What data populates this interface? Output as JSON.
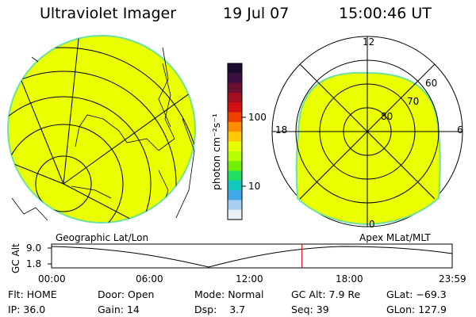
{
  "header": {
    "instrument": "Ultraviolet Imager",
    "date": "19 Jul 07",
    "time": "15:00:46 UT"
  },
  "colorbar": {
    "unit_label": "photon cm⁻²s⁻¹",
    "tick_labels": [
      "100",
      "10"
    ],
    "colors": [
      "#1a0a2e",
      "#3a1040",
      "#6a1030",
      "#a01020",
      "#d01010",
      "#ee4000",
      "#ff8c00",
      "#ffc800",
      "#e8ff00",
      "#b8ff00",
      "#70f000",
      "#20e060",
      "#10c8c0",
      "#40a8e8",
      "#a8d0f0",
      "#e8f0f8"
    ]
  },
  "geo_panel": {
    "label": "Geographic Lat/Lon",
    "fill_color": "#eaff00",
    "edge_color": "#6ee0a0"
  },
  "mlt_panel": {
    "label": "Apex MLat/MLT",
    "mlt_labels": {
      "top": "12",
      "left": "18",
      "right": "6",
      "bottom": "0"
    },
    "lat_labels": [
      "60",
      "70",
      "80"
    ],
    "fill_color": "#eaff00"
  },
  "altitude_plot": {
    "ylabel": "GC Alt",
    "ytick_labels": [
      "9.0",
      "1.8"
    ],
    "time_labels": [
      "00:00",
      "06:00",
      "12:00",
      "18:00",
      "23:59"
    ],
    "current_time_fraction": 0.625,
    "marker_color": "#cc0000"
  },
  "info": {
    "filter_label": "Flt:",
    "filter": "HOME",
    "ip_label": "IP:",
    "ip": "36.0",
    "door_label": "Door:",
    "door": "Open",
    "gain_label": "Gain:",
    "gain": "14",
    "mode_label": "Mode:",
    "mode": "Normal",
    "dsp_label": "Dsp:",
    "dsp": "3.7",
    "gcalt_label": "GC Alt:",
    "gcalt": "7.9 Re",
    "seq_label": "Seq:",
    "seq": "39",
    "glat_label": "GLat:",
    "glat": "−69.3",
    "glon_label": "GLon:",
    "glon": "127.9"
  }
}
